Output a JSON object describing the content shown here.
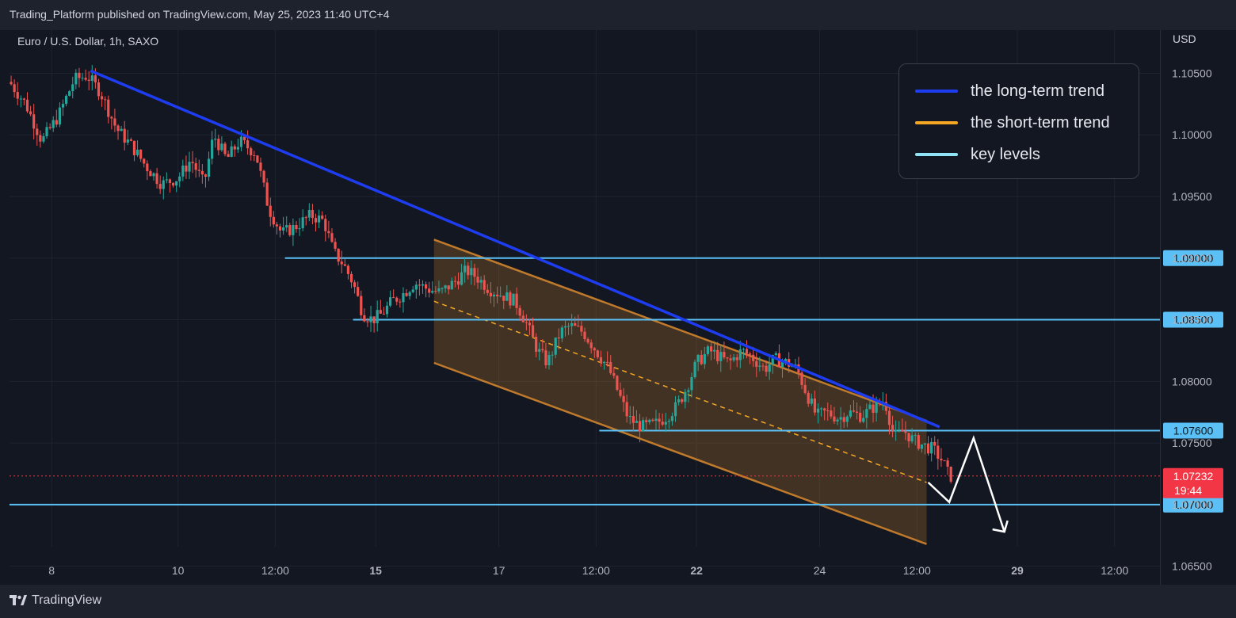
{
  "header": {
    "published_text": "Trading_Platform published on TradingView.com, May 25, 2023 11:40 UTC+4"
  },
  "footer": {
    "brand": "TradingView"
  },
  "chart_data": {
    "type": "candlestick",
    "symbol_label": "Euro / U.S. Dollar, 1h, SAXO",
    "currency": "USD",
    "x_tick_labels": [
      "8",
      "10",
      "12:00",
      "15",
      "17",
      "12:00",
      "22",
      "24",
      "12:00",
      "29",
      "12:00"
    ],
    "bold_tick_labels": [
      "15",
      "22",
      "29"
    ],
    "y_ticks": [
      1.105,
      1.1,
      1.095,
      1.09,
      1.085,
      1.08,
      1.075,
      1.07,
      1.065
    ],
    "y_tick_labels": [
      "1.10500",
      "1.10000",
      "1.09500",
      "1.09000",
      "1.08500",
      "1.08000",
      "1.07500",
      "1.07000",
      "1.06500"
    ],
    "ylim": [
      1.0635,
      1.1085
    ],
    "grid": true,
    "price_path": [
      [
        0,
        1.1043
      ],
      [
        5,
        1.1025
      ],
      [
        10,
        1.0995
      ],
      [
        15,
        1.1015
      ],
      [
        20,
        1.1045
      ],
      [
        24,
        1.1048
      ],
      [
        28,
        1.1035
      ],
      [
        33,
        1.1005
      ],
      [
        38,
        1.099
      ],
      [
        42,
        1.0975
      ],
      [
        47,
        1.096
      ],
      [
        52,
        1.0965
      ],
      [
        56,
        1.098
      ],
      [
        60,
        1.096
      ],
      [
        63,
        1.1
      ],
      [
        67,
        1.098
      ],
      [
        71,
        1.0995
      ],
      [
        76,
        1.0985
      ],
      [
        80,
        1.094
      ],
      [
        84,
        1.092
      ],
      [
        88,
        1.0925
      ],
      [
        93,
        1.0935
      ],
      [
        97,
        1.093
      ],
      [
        100,
        1.0905
      ],
      [
        103,
        1.0895
      ],
      [
        106,
        1.088
      ],
      [
        109,
        1.0855
      ],
      [
        112,
        1.085
      ],
      [
        115,
        1.0855
      ],
      [
        118,
        1.0865
      ],
      [
        121,
        1.087
      ],
      [
        125,
        1.088
      ],
      [
        129,
        1.0875
      ],
      [
        133,
        1.0872
      ],
      [
        137,
        1.088
      ],
      [
        141,
        1.089
      ],
      [
        144,
        1.0885
      ],
      [
        148,
        1.0875
      ],
      [
        152,
        1.087
      ],
      [
        156,
        1.0865
      ],
      [
        159,
        1.085
      ],
      [
        163,
        1.0825
      ],
      [
        166,
        1.0815
      ],
      [
        170,
        1.084
      ],
      [
        173,
        1.0845
      ],
      [
        177,
        1.084
      ],
      [
        181,
        1.0825
      ],
      [
        185,
        1.081
      ],
      [
        188,
        1.079
      ],
      [
        191,
        1.077
      ],
      [
        195,
        1.0763
      ],
      [
        199,
        1.0765
      ],
      [
        203,
        1.0772
      ],
      [
        206,
        1.078
      ],
      [
        209,
        1.0795
      ],
      [
        212,
        1.0815
      ],
      [
        216,
        1.0825
      ],
      [
        219,
        1.082
      ],
      [
        222,
        1.0815
      ],
      [
        226,
        1.0825
      ],
      [
        229,
        1.082
      ],
      [
        233,
        1.081
      ],
      [
        236,
        1.0818
      ],
      [
        240,
        1.0815
      ],
      [
        243,
        1.081
      ],
      [
        246,
        1.079
      ],
      [
        249,
        1.0772
      ],
      [
        252,
        1.0775
      ],
      [
        256,
        1.077
      ],
      [
        259,
        1.0775
      ],
      [
        263,
        1.0772
      ],
      [
        266,
        1.0778
      ],
      [
        270,
        1.0785
      ],
      [
        273,
        1.0755
      ],
      [
        276,
        1.076
      ],
      [
        279,
        1.0752
      ],
      [
        282,
        1.0748
      ],
      [
        285,
        1.0745
      ],
      [
        288,
        1.0735
      ],
      [
        290,
        1.0723
      ]
    ],
    "last_price": "1.07232",
    "countdown": "19:44",
    "key_levels": [
      {
        "label": "1.09000",
        "value": 1.09
      },
      {
        "label": "1.08500",
        "value": 1.085
      },
      {
        "label": "1.07600",
        "value": 1.076
      },
      {
        "label": "1.07000",
        "value": 1.07
      }
    ],
    "legend": {
      "placement": "top-right",
      "items": [
        {
          "label": "the long-term trend",
          "color": "#1e3cf0"
        },
        {
          "label": "the short-term trend",
          "color": "#f5a623"
        },
        {
          "label": "key levels",
          "color": "#8fe3f5"
        }
      ]
    },
    "colors": {
      "up": "#26a69a",
      "down": "#ef5350",
      "key_level": "#5bc0f5",
      "long_trend": "#1e3cf0",
      "channel": "#c07a2c",
      "last_price_tag": "#f23645",
      "background": "#131722"
    }
  }
}
